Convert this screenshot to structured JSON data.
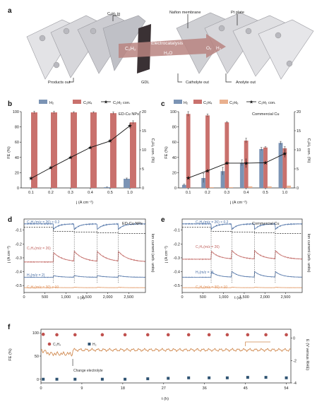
{
  "colors": {
    "h2": "#7b93b4",
    "c2h4": "#c9716d",
    "c2h6": "#e9b08e",
    "line": "#111111",
    "trace_blue": "#4a6fa5",
    "trace_red": "#c0625e",
    "trace_orange": "#e0915a",
    "ec_orange": "#d0894f"
  },
  "panel_a": {
    "letter": "a",
    "labels": {
      "c2h2_in": "C₂H₂ in",
      "nafion": "Nafion membrane",
      "pt_plate": "Pt plate",
      "electrocatalysis": "Electrocatalysis",
      "c2h2": "C₂H₂",
      "h2o": "H₂O",
      "o2": "O₂",
      "h2": "H₂",
      "products_out": "Products out",
      "gdl": "GDL",
      "catholyte_out": "Catholyte out",
      "anolyte_out": "Anolyte out"
    }
  },
  "chart_data": [
    {
      "id": "b",
      "type": "bar",
      "letter": "b",
      "legend": [
        "H₂",
        "C₂H₄",
        "C₂H₂ con."
      ],
      "annotation": "ED-Cu NPs",
      "categories": [
        "0.1",
        "0.2",
        "0.3",
        "0.4",
        "0.5",
        "1.0"
      ],
      "series": [
        {
          "name": "H₂",
          "values": [
            0,
            0,
            0,
            0,
            1,
            12
          ],
          "err": [
            0,
            0,
            0,
            0,
            0.3,
            1
          ]
        },
        {
          "name": "C₂H₄",
          "values": [
            99,
            99,
            99,
            99,
            98,
            86
          ],
          "err": [
            1.5,
            1.5,
            1,
            1,
            1.5,
            2
          ]
        }
      ],
      "line": {
        "name": "C₂H₂ con.",
        "values": [
          2.5,
          5.3,
          8.0,
          10.6,
          12.3,
          16.3
        ],
        "err": [
          0,
          0,
          0,
          0,
          0,
          0.8
        ]
      },
      "xlabel": "j (A cm⁻²)",
      "ylabel": "FE (%)",
      "y2label": "C₂H₂ con. (%)",
      "ylim": [
        0,
        100
      ],
      "y2lim": [
        0,
        20
      ],
      "yticks": [
        "0",
        "20",
        "40",
        "60",
        "80",
        "100"
      ],
      "y2ticks": [
        "0",
        "5",
        "10",
        "15",
        "20"
      ]
    },
    {
      "id": "c",
      "type": "bar",
      "letter": "c",
      "legend": [
        "H₂",
        "C₂H₄",
        "C₂H₆",
        "C₂H₂ con."
      ],
      "annotation": "Commercial Cu",
      "categories": [
        "0.1",
        "0.2",
        "0.3",
        "0.4",
        "0.5",
        "1.0"
      ],
      "series": [
        {
          "name": "H₂",
          "values": [
            4,
            13,
            22,
            33,
            51,
            59
          ],
          "err": [
            1,
            6,
            5,
            4,
            2,
            2
          ]
        },
        {
          "name": "C₂H₄",
          "values": [
            97,
            95,
            86,
            62,
            53,
            52
          ],
          "err": [
            3,
            2,
            1,
            3,
            1,
            2
          ]
        },
        {
          "name": "C₂H₆",
          "values": [
            0,
            1,
            1,
            2,
            2,
            3
          ],
          "err": [
            0,
            0,
            0,
            0,
            0,
            0
          ]
        }
      ],
      "line": {
        "name": "C₂H₂ con.",
        "values": [
          2.6,
          4.5,
          6.5,
          6.5,
          6.6,
          9.0
        ],
        "err": [
          0,
          0,
          0,
          1.2,
          0,
          1.0
        ]
      },
      "xlabel": "j (A cm⁻²)",
      "ylabel": "FE (%)",
      "y2label": "C₂H₂ con. (%)",
      "ylim": [
        0,
        100
      ],
      "y2lim": [
        0,
        20
      ],
      "yticks": [
        "0",
        "20",
        "40",
        "60",
        "80",
        "100"
      ],
      "y2ticks": [
        "0",
        "5",
        "10",
        "15",
        "20"
      ]
    },
    {
      "id": "d",
      "type": "line",
      "letter": "d",
      "annotation": "ED-Cu NPs",
      "xlabel": "t (s)",
      "ylabel": "j (A cm⁻²)",
      "y2label": "Ion current (arb. units)",
      "xlim": [
        0,
        2900
      ],
      "ylim": [
        -0.55,
        -0.02
      ],
      "xticks": [
        "0",
        "500",
        "1,000",
        "1,500",
        "2,000",
        "2,500"
      ],
      "yticks": [
        "-0.1",
        "-0.2",
        "-0.3",
        "-0.4",
        "-0.5"
      ],
      "steps": [
        700,
        1200,
        1750,
        2250
      ],
      "traces": [
        {
          "label": "C₂H₂(m/z = 26) × 0.2"
        },
        {
          "label": "C₂H₄(m/z = 26)"
        },
        {
          "label": "H₂(m/z = 2)"
        },
        {
          "label": "C₂H₆(m/z = 30) × 10"
        }
      ]
    },
    {
      "id": "e",
      "type": "line",
      "letter": "e",
      "annotation": "Commercial Cu",
      "xlabel": "t (s)",
      "ylabel": "j (A cm⁻²)",
      "y2label": "Ion current (arb. units)",
      "xlim": [
        0,
        2900
      ],
      "ylim": [
        -0.55,
        -0.02
      ],
      "xticks": [
        "0",
        "500",
        "1,000",
        "1,500",
        "2,000",
        "2,500"
      ],
      "yticks": [
        "-0.1",
        "-0.2",
        "-0.3",
        "-0.4",
        "-0.5"
      ],
      "steps": [
        700,
        1200,
        1750,
        2250
      ],
      "traces": [
        {
          "label": "C₂H₂(m/z = 26) × 0.2"
        },
        {
          "label": "C₂H₄(m/z = 26)"
        },
        {
          "label": "H₂(m/z = 2)"
        },
        {
          "label": "C₂H₆(m/z = 30) × 10"
        }
      ]
    },
    {
      "id": "f",
      "type": "scatter",
      "letter": "f",
      "xlabel": "t (h)",
      "ylabel": "FE (%)",
      "y2label": "E (V versus RHE)",
      "xlim": [
        0,
        55
      ],
      "ylim": [
        -8,
        108
      ],
      "y2lim": [
        -4,
        0.8
      ],
      "xticks": [
        "0",
        "9",
        "18",
        "27",
        "36",
        "45",
        "54"
      ],
      "yticks": [
        "0",
        "50",
        "100"
      ],
      "y2ticks": [
        "0",
        "-2",
        "-4"
      ],
      "c2h4": {
        "name": "C₂H₄",
        "x": [
          0.5,
          3.5,
          7.5,
          13.5,
          18.5,
          23.5,
          28,
          32.5,
          37,
          41,
          45.5,
          49.5,
          54
        ],
        "y": [
          97,
          96,
          96,
          96,
          96,
          96,
          96,
          96,
          96,
          96,
          96,
          96,
          96
        ]
      },
      "h2": {
        "name": "H₂",
        "x": [
          0.5,
          3.5,
          7.5,
          13.5,
          18.5,
          23.5,
          28,
          32.5,
          37,
          41,
          45.5,
          49.5,
          54
        ],
        "y": [
          0,
          0,
          0,
          0,
          0,
          1,
          2,
          3,
          3,
          3,
          4,
          4,
          3
        ]
      },
      "potential": {
        "start": -1.05,
        "dip": -1.6,
        "end": -1.05
      },
      "annotation": "Change electrolyte",
      "annotation_x": 7
    }
  ]
}
